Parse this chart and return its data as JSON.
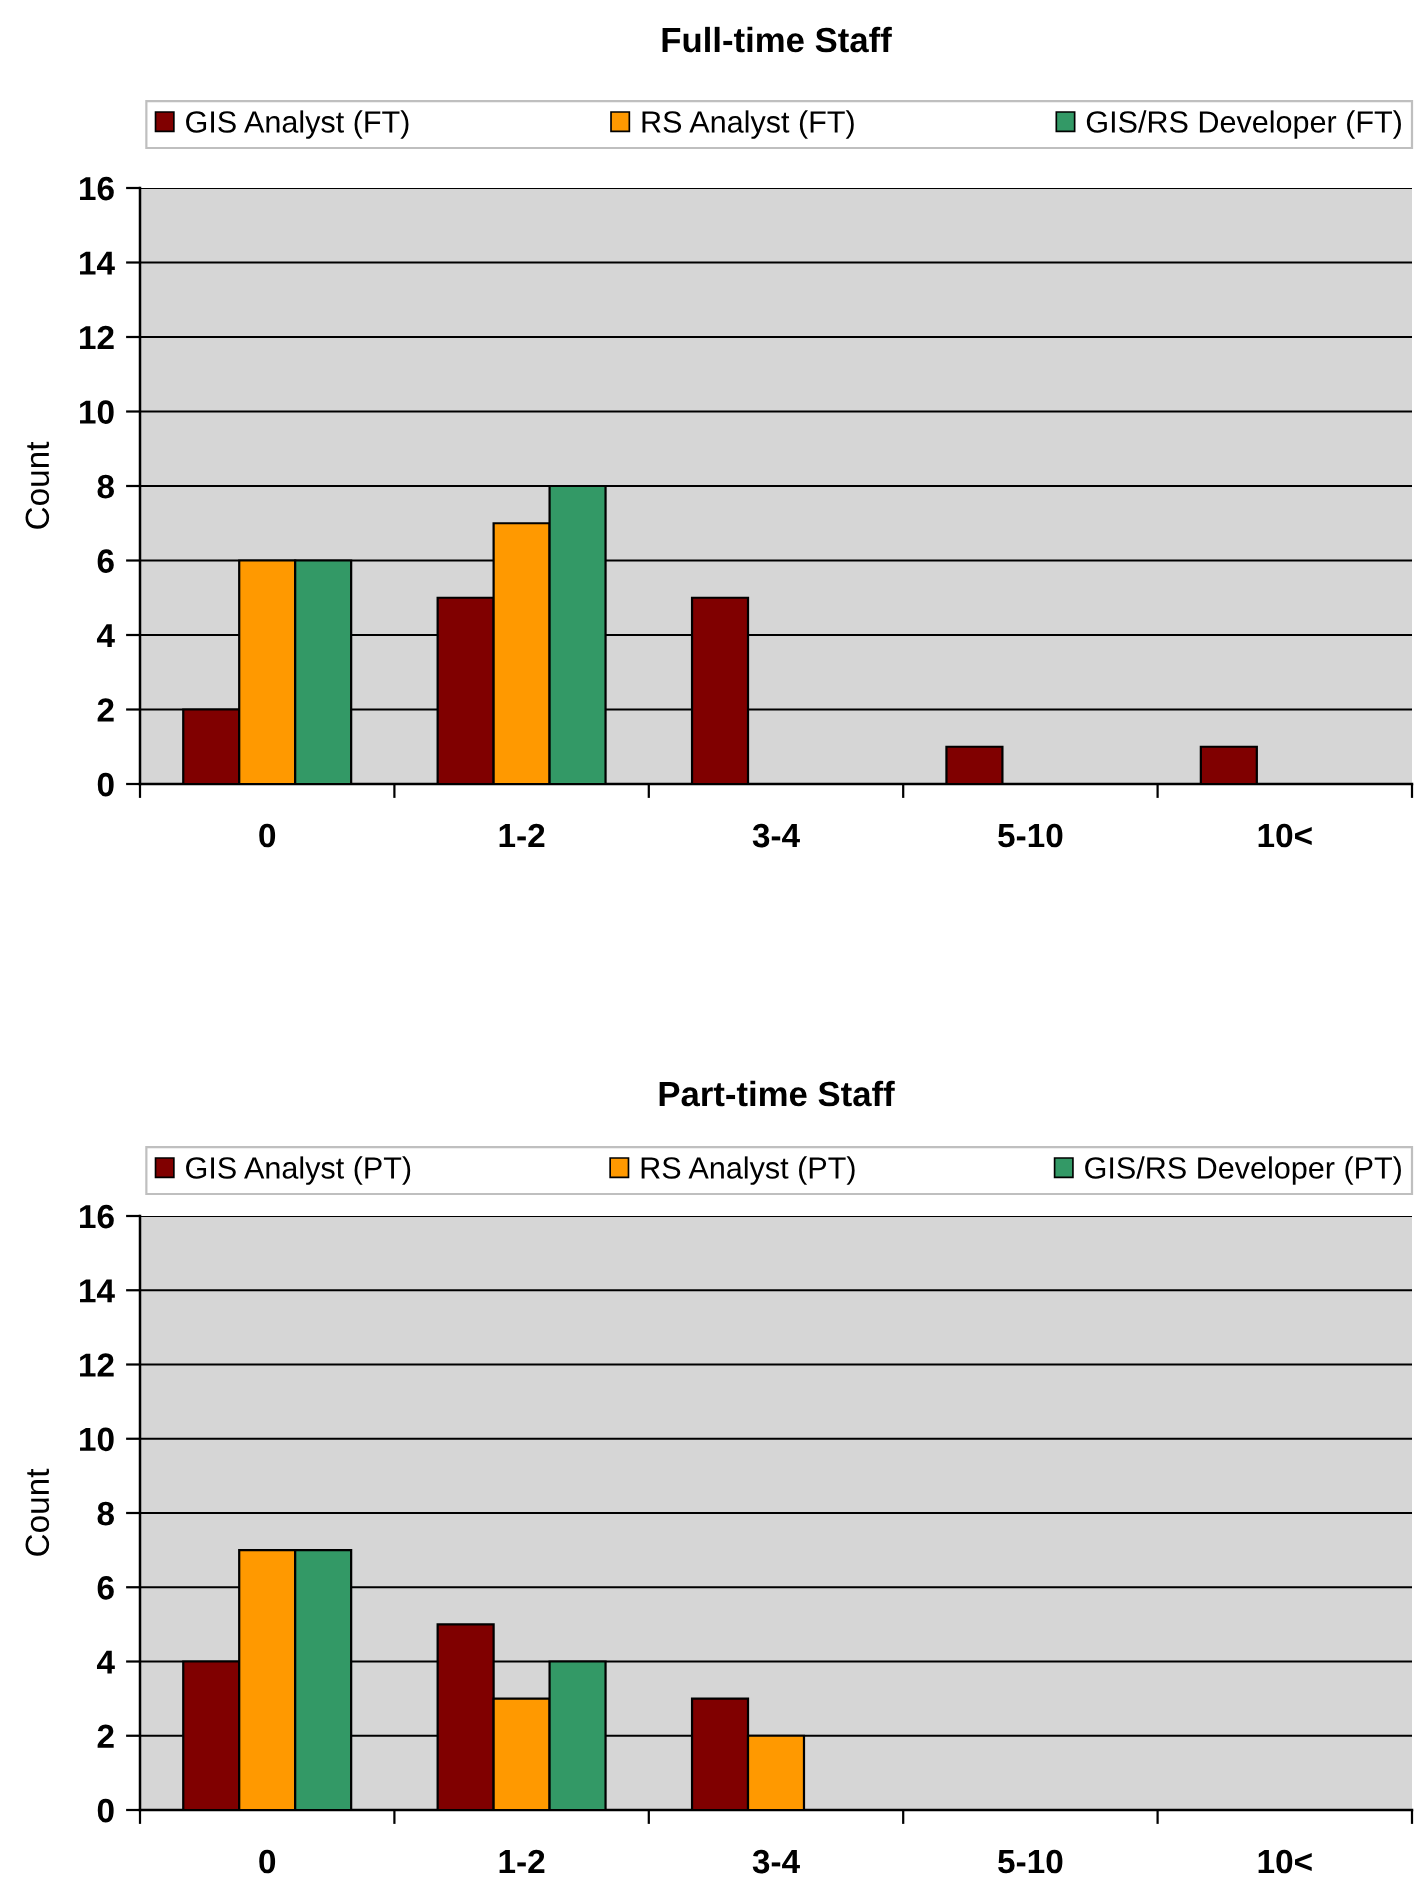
{
  "chart_data": [
    {
      "type": "bar",
      "title": "Full-time Staff",
      "ylabel": "Count",
      "categories": [
        "0",
        "1-2",
        "3-4",
        "5-10",
        "10<"
      ],
      "series": [
        {
          "name": "GIS Analyst (FT)",
          "color": "#800000",
          "values": [
            2,
            5,
            5,
            1,
            1
          ]
        },
        {
          "name": "RS Analyst (FT)",
          "color": "#ff9900",
          "values": [
            6,
            7,
            null,
            null,
            null
          ]
        },
        {
          "name": "GIS/RS Developer (FT)",
          "color": "#339966",
          "values": [
            6,
            8,
            null,
            null,
            null
          ]
        }
      ],
      "ylim": [
        0,
        16
      ],
      "yticks": [
        0,
        2,
        4,
        6,
        8,
        10,
        12,
        14,
        16
      ],
      "grid": "y",
      "legend": "top"
    },
    {
      "type": "bar",
      "title": "Part-time Staff",
      "ylabel": "Count",
      "categories": [
        "0",
        "1-2",
        "3-4",
        "5-10",
        "10<"
      ],
      "series": [
        {
          "name": "GIS Analyst (PT)",
          "color": "#800000",
          "values": [
            4,
            5,
            3,
            null,
            null
          ]
        },
        {
          "name": "RS Analyst (PT)",
          "color": "#ff9900",
          "values": [
            7,
            3,
            2,
            null,
            null
          ]
        },
        {
          "name": "GIS/RS Developer (PT)",
          "color": "#339966",
          "values": [
            7,
            4,
            null,
            null,
            null
          ]
        }
      ],
      "ylim": [
        0,
        16
      ],
      "yticks": [
        0,
        2,
        4,
        6,
        8,
        10,
        12,
        14,
        16
      ],
      "grid": "y",
      "legend": "top"
    }
  ]
}
